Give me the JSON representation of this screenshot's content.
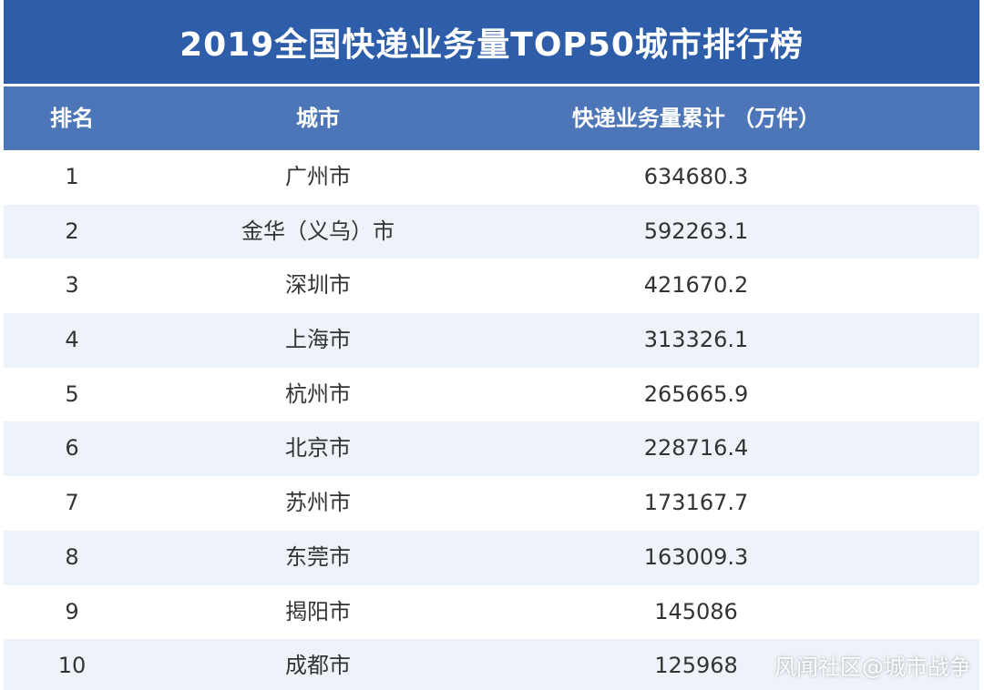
{
  "title": "2019全国快递业务量TOP50城市排行榜",
  "colors": {
    "title_bg": "#2e5ea9",
    "header_bg": "#4d76b9",
    "stripe": "#eef3fa"
  },
  "chart_data": {
    "type": "table",
    "columns": [
      "排名",
      "城市",
      "快递业务量累计 （万件）"
    ],
    "rows": [
      {
        "rank": "1",
        "city": "广州市",
        "value": "634680.3"
      },
      {
        "rank": "2",
        "city": "金华（义乌）市",
        "value": "592263.1"
      },
      {
        "rank": "3",
        "city": "深圳市",
        "value": "421670.2"
      },
      {
        "rank": "4",
        "city": "上海市",
        "value": "313326.1"
      },
      {
        "rank": "5",
        "city": "杭州市",
        "value": "265665.9"
      },
      {
        "rank": "6",
        "city": "北京市",
        "value": "228716.4"
      },
      {
        "rank": "7",
        "city": "苏州市",
        "value": "173167.7"
      },
      {
        "rank": "8",
        "city": "东莞市",
        "value": "163009.3"
      },
      {
        "rank": "9",
        "city": "揭阳市",
        "value": "145086"
      },
      {
        "rank": "10",
        "city": "成都市",
        "value": "125968"
      }
    ]
  },
  "watermark": "风闻社区@城市战争"
}
